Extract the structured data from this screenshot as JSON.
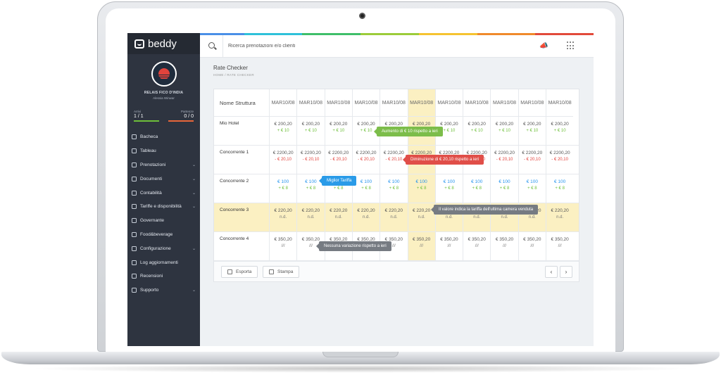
{
  "brand": {
    "name": "beddy"
  },
  "profile": {
    "hotel": "RELAIS FICO D'INDIA",
    "user": "Alessia Winwar"
  },
  "stats": {
    "arrivals": {
      "label": "Arrivi",
      "value": "1 / 1",
      "color": "#6ebf3a"
    },
    "departures": {
      "label": "Partenze",
      "value": "0 / 0",
      "color": "#e8663a"
    }
  },
  "menu": [
    {
      "label": "Bacheca",
      "icon": "dashboard-icon",
      "chevron": false
    },
    {
      "label": "Tableau",
      "icon": "calendar-icon",
      "chevron": false
    },
    {
      "label": "Prenotazioni",
      "icon": "booking-icon",
      "chevron": true
    },
    {
      "label": "Documenti",
      "icon": "document-icon",
      "chevron": true
    },
    {
      "label": "Contabilità",
      "icon": "accounting-icon",
      "chevron": true
    },
    {
      "label": "Tariffe e disponibilità",
      "icon": "tag-icon",
      "chevron": true
    },
    {
      "label": "Governante",
      "icon": "housekeeping-icon",
      "chevron": false
    },
    {
      "label": "Food&beverage",
      "icon": "food-icon",
      "chevron": false
    },
    {
      "label": "Configurazione",
      "icon": "gear-icon",
      "chevron": true
    },
    {
      "label": "Log aggiornamenti",
      "icon": "clock-icon",
      "chevron": false
    },
    {
      "label": "Recensioni",
      "icon": "thumbs-up-icon",
      "chevron": false
    },
    {
      "label": "Supporto",
      "icon": "help-icon",
      "chevron": true
    }
  ],
  "search": {
    "placeholder": "Ricerca prenotazioni e/o clienti"
  },
  "page": {
    "title": "Rate Checker",
    "breadcrumb": "HOME   /   RATE CHECKER"
  },
  "table": {
    "name_header": "Nome Struttura",
    "columns": [
      {
        "day": "MAR",
        "date": "10/08"
      },
      {
        "day": "MAR",
        "date": "10/08"
      },
      {
        "day": "MAR",
        "date": "10/08"
      },
      {
        "day": "MAR",
        "date": "10/08"
      },
      {
        "day": "MAR",
        "date": "10/08"
      },
      {
        "day": "MAR",
        "date": "10/08"
      },
      {
        "day": "MAR",
        "date": "10/08"
      },
      {
        "day": "MAR",
        "date": "10/08"
      },
      {
        "day": "MAR",
        "date": "10/08"
      },
      {
        "day": "MAR",
        "date": "10/08"
      },
      {
        "day": "MAR",
        "date": "10/08"
      }
    ],
    "highlight_column": 5,
    "highlight_row": 3,
    "rows": [
      {
        "name": "Mio Hotel",
        "price": "€ 200,20",
        "delta": "+ € 10",
        "style": "up",
        "blue": false
      },
      {
        "name": "Concorrente 1",
        "price": "€ 2200,20",
        "delta": "- € 20,10",
        "style": "down",
        "blue": false
      },
      {
        "name": "Concorrente 2",
        "price": "€ 100",
        "delta": "+ € 8",
        "style": "up",
        "blue": true
      },
      {
        "name": "Concorrente 3",
        "price": "€ 220,20",
        "delta": "n.d.",
        "style": "na",
        "blue": false
      },
      {
        "name": "Concorrente 4",
        "price": "€ 350,20",
        "delta": "///",
        "style": "na",
        "blue": false
      }
    ]
  },
  "tooltips": [
    {
      "text": "Aumento di € 10 rispetto a ieri",
      "color": "#7cbd4a"
    },
    {
      "text": "Diminuzione di € 20,10 rispetto a ieri",
      "color": "#e04e48"
    },
    {
      "text": "Miglior Tariffa",
      "color": "#2a9be8"
    },
    {
      "text": "Il valore indica la tariffa dell'ultima camera venduta",
      "color": "#767b82"
    },
    {
      "text": "Nessuna variazione rispetto a ieri",
      "color": "#767b82"
    }
  ],
  "footer": {
    "export_label": "Esporta",
    "print_label": "Stampa",
    "prev": "‹",
    "next": "›"
  },
  "rainbow": [
    "#7b5bd6",
    "#4a8fe7",
    "#2ec1d9",
    "#3fbf6a",
    "#9ccc3a",
    "#f5c330",
    "#f08a2b",
    "#e24a3b"
  ]
}
